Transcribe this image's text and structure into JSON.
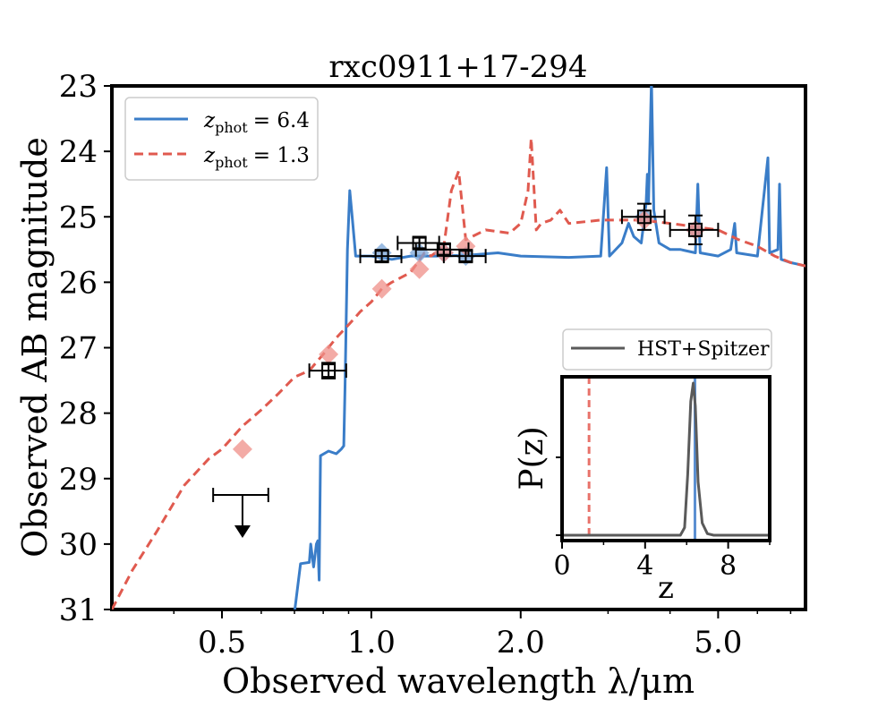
{
  "colors": {
    "blue": "#3a7dc8",
    "red": "#e05a4f",
    "red_marker": "#ef8f88",
    "blue_marker": "#7aa6d8",
    "pz_line": "#5a5a5a",
    "pz_red": "#e8726a",
    "pz_blue": "#5b8fd1"
  },
  "chart_data": [
    {
      "type": "line",
      "title": "rxc0911+17-294",
      "xlabel": "Observed wavelength λ/μm",
      "ylabel": "Observed AB magnitude",
      "xscale": "log",
      "xlim": [
        0.3,
        7.5
      ],
      "ylim": [
        31,
        23
      ],
      "xtick_values": [
        0.5,
        1.0,
        2.0,
        5.0
      ],
      "xtick_labels": [
        "0.5",
        "1.0",
        "2.0",
        "5.0"
      ],
      "ytick_values": [
        23,
        24,
        25,
        26,
        27,
        28,
        29,
        30,
        31
      ],
      "ytick_labels": [
        "23",
        "24",
        "25",
        "26",
        "27",
        "28",
        "29",
        "30",
        "31"
      ],
      "legend": {
        "position": "top-left",
        "entries": [
          {
            "label_main": "z",
            "label_sub": "phot",
            "label_value": "= 6.4",
            "style": "solid"
          },
          {
            "label_main": "z",
            "label_sub": "phot",
            "label_value": "= 1.3",
            "style": "dashed"
          }
        ]
      },
      "series": [
        {
          "name": "zphot = 6.4",
          "style": "solid",
          "points": [
            [
              0.7,
              31.05
            ],
            [
              0.72,
              30.3
            ],
            [
              0.75,
              30.28
            ],
            [
              0.755,
              30.0
            ],
            [
              0.765,
              30.35
            ],
            [
              0.775,
              30.0
            ],
            [
              0.78,
              29.95
            ],
            [
              0.785,
              30.55
            ],
            [
              0.79,
              28.65
            ],
            [
              0.82,
              28.58
            ],
            [
              0.85,
              28.62
            ],
            [
              0.87,
              28.55
            ],
            [
              0.88,
              28.5
            ],
            [
              0.885,
              27.6
            ],
            [
              0.895,
              25.5
            ],
            [
              0.905,
              24.6
            ],
            [
              0.915,
              25.0
            ],
            [
              0.93,
              25.6
            ],
            [
              1.0,
              25.6
            ],
            [
              1.1,
              25.65
            ],
            [
              1.2,
              25.6
            ],
            [
              1.4,
              25.6
            ],
            [
              1.6,
              25.58
            ],
            [
              1.8,
              25.55
            ],
            [
              2.0,
              25.6
            ],
            [
              2.5,
              25.62
            ],
            [
              2.9,
              25.6
            ],
            [
              2.98,
              24.25
            ],
            [
              3.02,
              25.6
            ],
            [
              3.2,
              25.4
            ],
            [
              3.3,
              25.1
            ],
            [
              3.38,
              25.3
            ],
            [
              3.5,
              25.4
            ],
            [
              3.58,
              24.8
            ],
            [
              3.6,
              24.35
            ],
            [
              3.62,
              24.8
            ],
            [
              3.67,
              22.9
            ],
            [
              3.71,
              24.9
            ],
            [
              3.8,
              25.4
            ],
            [
              4.0,
              25.5
            ],
            [
              4.2,
              25.5
            ],
            [
              4.5,
              25.55
            ],
            [
              4.55,
              24.5
            ],
            [
              4.6,
              25.55
            ],
            [
              5.0,
              25.6
            ],
            [
              5.3,
              25.5
            ],
            [
              5.4,
              25.1
            ],
            [
              5.45,
              25.55
            ],
            [
              6.0,
              25.6
            ],
            [
              6.3,
              24.1
            ],
            [
              6.35,
              25.55
            ],
            [
              6.6,
              25.5
            ],
            [
              6.65,
              24.5
            ],
            [
              6.7,
              25.65
            ],
            [
              7.0,
              25.7
            ],
            [
              7.5,
              25.75
            ]
          ]
        },
        {
          "name": "zphot = 1.3",
          "style": "dashed",
          "points": [
            [
              0.3,
              31.0
            ],
            [
              0.33,
              30.4
            ],
            [
              0.37,
              29.8
            ],
            [
              0.42,
              29.1
            ],
            [
              0.47,
              28.7
            ],
            [
              0.5,
              28.55
            ],
            [
              0.55,
              28.2
            ],
            [
              0.6,
              27.95
            ],
            [
              0.65,
              27.7
            ],
            [
              0.7,
              27.45
            ],
            [
              0.75,
              27.35
            ],
            [
              0.8,
              27.1
            ],
            [
              0.85,
              26.85
            ],
            [
              0.9,
              26.65
            ],
            [
              0.95,
              26.45
            ],
            [
              1.0,
              26.3
            ],
            [
              1.05,
              26.1
            ],
            [
              1.1,
              26.0
            ],
            [
              1.2,
              25.85
            ],
            [
              1.28,
              25.55
            ],
            [
              1.32,
              25.6
            ],
            [
              1.4,
              25.45
            ],
            [
              1.45,
              24.6
            ],
            [
              1.5,
              24.3
            ],
            [
              1.55,
              25.35
            ],
            [
              1.7,
              25.2
            ],
            [
              1.9,
              25.25
            ],
            [
              2.0,
              25.1
            ],
            [
              2.07,
              24.6
            ],
            [
              2.1,
              23.8
            ],
            [
              2.15,
              25.2
            ],
            [
              2.2,
              25.1
            ],
            [
              2.3,
              25.05
            ],
            [
              2.4,
              24.9
            ],
            [
              2.5,
              25.1
            ],
            [
              2.9,
              25.05
            ],
            [
              3.5,
              25.05
            ],
            [
              4.0,
              25.1
            ],
            [
              5.0,
              25.2
            ],
            [
              5.5,
              25.35
            ],
            [
              6.0,
              25.45
            ],
            [
              6.5,
              25.6
            ],
            [
              7.0,
              25.7
            ],
            [
              7.5,
              25.75
            ]
          ]
        }
      ],
      "observed_points": [
        {
          "x": 0.82,
          "y": 27.35,
          "xerr": 0.07,
          "yerr": 0.12
        },
        {
          "x": 1.05,
          "y": 25.6,
          "xerr": 0.1,
          "yerr": 0.08
        },
        {
          "x": 1.25,
          "y": 25.4,
          "xerr": 0.12,
          "yerr": 0.08
        },
        {
          "x": 1.4,
          "y": 25.5,
          "xerr": 0.17,
          "yerr": 0.08
        },
        {
          "x": 1.55,
          "y": 25.6,
          "xerr": 0.15,
          "yerr": 0.08
        },
        {
          "x": 3.55,
          "y": 25.0,
          "xerr": 0.35,
          "yerr": 0.2
        },
        {
          "x": 4.5,
          "y": 25.2,
          "xerr": 0.5,
          "yerr": 0.22
        }
      ],
      "upper_limit": {
        "x": 0.55,
        "y": 29.25,
        "xerr": 0.07
      },
      "model_photometry_red": [
        [
          0.55,
          28.55
        ],
        [
          0.82,
          27.1
        ],
        [
          1.05,
          26.1
        ],
        [
          1.25,
          25.8
        ],
        [
          1.4,
          25.55
        ],
        [
          1.55,
          25.45
        ],
        [
          3.55,
          25.05
        ],
        [
          4.5,
          25.2
        ]
      ],
      "model_photometry_blue": [
        [
          1.05,
          25.55
        ],
        [
          1.25,
          25.55
        ],
        [
          1.4,
          25.55
        ],
        [
          1.55,
          25.6
        ],
        [
          3.55,
          25.0
        ],
        [
          4.5,
          25.2
        ]
      ]
    },
    {
      "type": "line",
      "title": "",
      "xlabel": "z",
      "ylabel": "P(z)",
      "xlim": [
        0,
        10
      ],
      "xtick_values": [
        0,
        4,
        8
      ],
      "xtick_labels": [
        "0",
        "4",
        "8"
      ],
      "legend": {
        "position": "above",
        "entries": [
          {
            "label": "HST+Spitzer"
          }
        ]
      },
      "series": [
        {
          "name": "HST+Spitzer",
          "points": [
            [
              0,
              0
            ],
            [
              5.7,
              0
            ],
            [
              5.9,
              0.05
            ],
            [
              6.05,
              0.4
            ],
            [
              6.2,
              0.88
            ],
            [
              6.32,
              1.0
            ],
            [
              6.42,
              0.85
            ],
            [
              6.55,
              0.35
            ],
            [
              6.75,
              0.08
            ],
            [
              7.0,
              0.01
            ],
            [
              7.3,
              0
            ],
            [
              10,
              0
            ]
          ]
        }
      ],
      "markers": {
        "z_low": 1.3,
        "z_high": 6.4
      }
    }
  ]
}
